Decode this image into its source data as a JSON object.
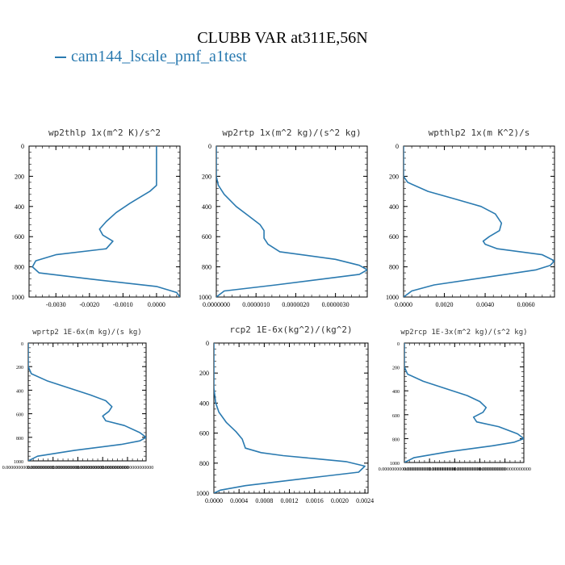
{
  "title": "CLUBB VAR at311E,56N",
  "legend": {
    "label": "cam144_lscale_pmf_a1test",
    "color": "#2a7ab0"
  },
  "chart_data": [
    {
      "type": "line",
      "title": "wp2thlp   1x(m^2 K)/s^2",
      "xlim": [
        -0.0038,
        0.0007
      ],
      "ylim": [
        1000,
        0
      ],
      "xticks": [
        -0.003,
        -0.002,
        -0.001,
        0.0
      ],
      "xtick_labels": [
        "-0.0030",
        "-0.0020",
        "-0.0010",
        "0.0000"
      ],
      "yticks": [
        0,
        200,
        400,
        600,
        800,
        1000
      ],
      "ytick_labels": [
        "0",
        "200",
        "400",
        "600",
        "800",
        "1000"
      ],
      "series": [
        {
          "name": "cam144_lscale_pmf_a1test",
          "x": [
            0.0,
            0.0,
            0.0,
            0.0,
            -0.0002,
            -0.0005,
            -0.0008,
            -0.0012,
            -0.0015,
            -0.0017,
            -0.0016,
            -0.0013,
            -0.0015,
            -0.003,
            -0.0036,
            -0.0037,
            -0.0035,
            -0.002,
            0.0,
            0.0006,
            0.0007
          ],
          "y": [
            0,
            100,
            200,
            260,
            300,
            340,
            380,
            440,
            500,
            550,
            590,
            630,
            680,
            720,
            760,
            800,
            840,
            880,
            930,
            970,
            1000
          ]
        }
      ]
    },
    {
      "type": "line",
      "title": "wp2rtp   1x(m^2 kg)/(s^2 kg)",
      "xlim": [
        0.0,
        3.8e-06
      ],
      "ylim": [
        1000,
        0
      ],
      "xticks": [
        0.0,
        1e-06,
        2e-06,
        3e-06
      ],
      "xtick_labels": [
        "0.0000000",
        "0.0000010",
        "0.0000020",
        "0.0000030"
      ],
      "yticks": [
        0,
        200,
        400,
        600,
        800,
        1000
      ],
      "ytick_labels": [
        "0",
        "200",
        "400",
        "600",
        "800",
        "1000"
      ],
      "series": [
        {
          "name": "cam144_lscale_pmf_a1test",
          "x": [
            0.0,
            0.0,
            5e-08,
            2e-07,
            5e-07,
            8e-07,
            1.1e-06,
            1.2e-06,
            1.2e-06,
            1.3e-06,
            1.6e-06,
            3e-06,
            3.6e-06,
            3.8e-06,
            3.6e-06,
            3e-06,
            1.5e-06,
            2e-07,
            0.0
          ],
          "y": [
            0,
            200,
            260,
            320,
            400,
            460,
            520,
            560,
            610,
            650,
            700,
            750,
            790,
            820,
            850,
            870,
            920,
            960,
            1000
          ]
        }
      ]
    },
    {
      "type": "line",
      "title": "wpthlp2   1x(m K^2)/s",
      "xlim": [
        0.0,
        0.0074
      ],
      "ylim": [
        1000,
        0
      ],
      "xticks": [
        0.0,
        0.002,
        0.004,
        0.006
      ],
      "xtick_labels": [
        "0.0000",
        "0.0020",
        "0.0040",
        "0.0060"
      ],
      "yticks": [
        0,
        200,
        400,
        600,
        800,
        1000
      ],
      "ytick_labels": [
        "0",
        "200",
        "400",
        "600",
        "800",
        "1000"
      ],
      "series": [
        {
          "name": "cam144_lscale_pmf_a1test",
          "x": [
            0.0,
            0.0,
            0.0002,
            0.0012,
            0.0025,
            0.0038,
            0.0045,
            0.0048,
            0.0047,
            0.0042,
            0.0039,
            0.004,
            0.0046,
            0.0068,
            0.0074,
            0.0072,
            0.0065,
            0.004,
            0.0015,
            0.0004,
            0.0
          ],
          "y": [
            0,
            200,
            240,
            300,
            350,
            400,
            450,
            510,
            560,
            600,
            630,
            650,
            680,
            720,
            760,
            790,
            820,
            870,
            920,
            960,
            1000
          ]
        }
      ]
    },
    {
      "type": "line",
      "title": "wprtp2   1E-6x(m kg)/(s kg)",
      "xlim": [
        0.0,
        3.8e-06
      ],
      "ylim": [
        1000,
        0
      ],
      "xticks": [
        0.0,
        8e-07,
        1.6e-06,
        2.4e-06,
        3.2e-06
      ],
      "xtick_labels": [
        "0.00000000000000000000",
        "0.00000000000000000000",
        "0.00000000000000000000",
        "0.00000000000000000000",
        "0.00000000000000000000"
      ],
      "yticks": [
        0,
        200,
        400,
        600,
        800,
        1000
      ],
      "ytick_labels": [
        "0",
        "200",
        "400",
        "600",
        "800",
        "1000"
      ],
      "series": [
        {
          "name": "cam144_lscale_pmf_a1test",
          "x": [
            0.0,
            0.0,
            1e-07,
            6e-07,
            1.3e-06,
            2e-06,
            2.5e-06,
            2.7e-06,
            2.6e-06,
            2.4e-06,
            2.5e-06,
            3.1e-06,
            3.6e-06,
            3.8e-06,
            3.6e-06,
            3e-06,
            1.5e-06,
            3e-07,
            0.0
          ],
          "y": [
            0,
            200,
            260,
            320,
            380,
            440,
            490,
            540,
            580,
            620,
            660,
            700,
            760,
            800,
            830,
            860,
            910,
            960,
            1000
          ]
        }
      ]
    },
    {
      "type": "line",
      "title": "rcp2   1E-6x(kg^2)/(kg^2)",
      "xlim": [
        0.0,
        0.00245
      ],
      "ylim": [
        1000,
        0
      ],
      "xticks": [
        0.0,
        0.0004,
        0.0008,
        0.0012,
        0.0016,
        0.002,
        0.0024
      ],
      "xtick_labels": [
        "0.0000",
        "0.0004",
        "0.0008",
        "0.0012",
        "0.0016",
        "0.0020",
        "0.0024"
      ],
      "yticks": [
        0,
        200,
        400,
        600,
        800,
        1000
      ],
      "ytick_labels": [
        "0",
        "200",
        "400",
        "600",
        "800",
        "1000"
      ],
      "series": [
        {
          "name": "cam144_lscale_pmf_a1test",
          "x": [
            0.0,
            0.0,
            3e-05,
            8e-05,
            0.0002,
            0.00035,
            0.00045,
            0.0005,
            0.00075,
            0.0011,
            0.0016,
            0.0021,
            0.0024,
            0.0023,
            0.0017,
            0.0011,
            0.0005,
            0.0001,
            0.0
          ],
          "y": [
            0,
            300,
            400,
            460,
            530,
            590,
            640,
            700,
            730,
            750,
            770,
            790,
            820,
            860,
            890,
            920,
            950,
            980,
            1000
          ]
        }
      ]
    },
    {
      "type": "line",
      "title": "wp2rcp   1E-3x(m^2 kg)/(s^2 kg)",
      "xlim": [
        0.0,
        3.8e-06
      ],
      "ylim": [
        1000,
        0
      ],
      "xticks": [
        0.0,
        8e-07,
        1.6e-06,
        2.4e-06,
        3.2e-06
      ],
      "xtick_labels": [
        "0.00000000000000000000",
        "0.00000000000000000000",
        "0.00000000000000000000",
        "0.00000000000000000000",
        "0.00000000000000000000"
      ],
      "yticks": [
        0,
        200,
        400,
        600,
        800,
        1000
      ],
      "ytick_labels": [
        "0",
        "200",
        "400",
        "600",
        "800",
        "1000"
      ],
      "series": [
        {
          "name": "cam144_lscale_pmf_a1test",
          "x": [
            0.0,
            0.0,
            1e-07,
            6e-07,
            1.3e-06,
            2e-06,
            2.4e-06,
            2.6e-06,
            2.5e-06,
            2.2e-06,
            2.3e-06,
            3e-06,
            3.6e-06,
            3.8e-06,
            3.5e-06,
            2.8e-06,
            1.4e-06,
            3e-07,
            0.0
          ],
          "y": [
            0,
            200,
            260,
            320,
            380,
            440,
            490,
            540,
            580,
            620,
            660,
            700,
            760,
            800,
            830,
            860,
            910,
            960,
            1000
          ]
        }
      ]
    }
  ]
}
